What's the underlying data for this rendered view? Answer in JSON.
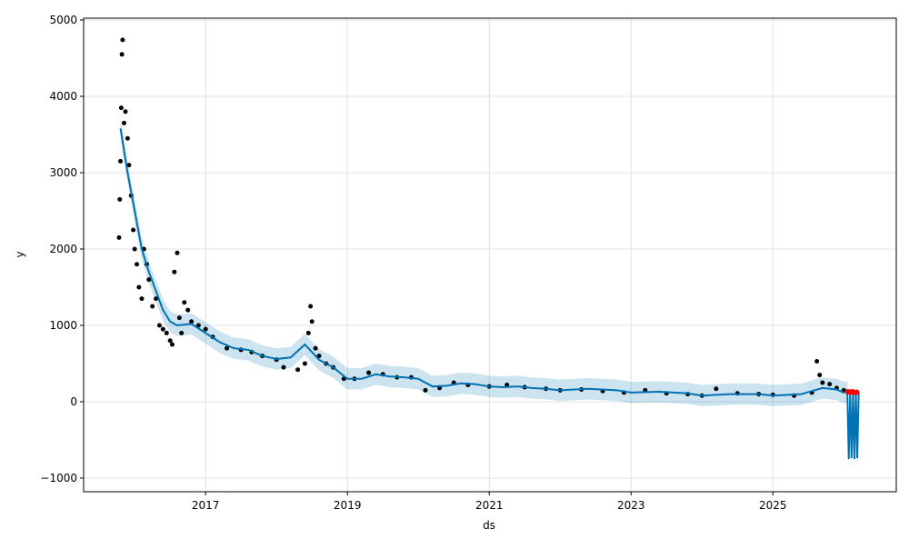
{
  "chart_data": {
    "type": "line",
    "x_label": "ds",
    "y_label": "y",
    "xlim": [
      2015.28,
      2026.74
    ],
    "ylim": [
      -1179,
      5024
    ],
    "xticks": [
      2017,
      2019,
      2021,
      2023,
      2025
    ],
    "yticks": [
      {
        "value": -1000,
        "label": "−1000"
      },
      0,
      1000,
      2000,
      3000,
      4000,
      5000
    ],
    "grid": true,
    "observed": {
      "color": "#000000",
      "x": [
        2015.78,
        2015.79,
        2015.8,
        2015.81,
        2015.82,
        2015.83,
        2015.85,
        2015.87,
        2015.9,
        2015.92,
        2015.95,
        2015.98,
        2016.0,
        2016.03,
        2016.06,
        2016.1,
        2016.13,
        2016.17,
        2016.2,
        2016.25,
        2016.3,
        2016.35,
        2016.4,
        2016.45,
        2016.5,
        2016.53,
        2016.56,
        2016.6,
        2016.63,
        2016.66,
        2016.7,
        2016.75,
        2016.8,
        2016.9,
        2017.0,
        2017.1,
        2017.3,
        2017.5,
        2017.65,
        2017.8,
        2018.0,
        2018.1,
        2018.3,
        2018.4,
        2018.45,
        2018.48,
        2018.5,
        2018.55,
        2018.6,
        2018.7,
        2018.8,
        2018.95,
        2019.1,
        2019.3,
        2019.5,
        2019.7,
        2019.9,
        2020.1,
        2020.3,
        2020.5,
        2020.7,
        2021.0,
        2021.25,
        2021.5,
        2021.8,
        2022.0,
        2022.3,
        2022.6,
        2022.9,
        2023.2,
        2023.5,
        2023.8,
        2024.0,
        2024.2,
        2024.5,
        2024.8,
        2025.0,
        2025.3,
        2025.55,
        2025.62,
        2025.66,
        2025.7,
        2025.8,
        2025.9,
        2026.0
      ],
      "y": [
        2150,
        2650,
        3150,
        3850,
        4550,
        4740,
        3650,
        3800,
        3450,
        3100,
        2700,
        2250,
        2000,
        1800,
        1500,
        1350,
        2000,
        1800,
        1600,
        1250,
        1350,
        1000,
        950,
        900,
        800,
        750,
        1700,
        1950,
        1100,
        900,
        1300,
        1200,
        1050,
        1000,
        950,
        850,
        700,
        680,
        650,
        600,
        550,
        450,
        420,
        500,
        900,
        1250,
        1050,
        700,
        600,
        500,
        450,
        300,
        300,
        380,
        360,
        320,
        320,
        150,
        180,
        250,
        220,
        200,
        220,
        190,
        170,
        150,
        160,
        140,
        120,
        150,
        110,
        100,
        80,
        170,
        110,
        100,
        90,
        80,
        120,
        530,
        350,
        250,
        230,
        180,
        150
      ]
    },
    "forecast": {
      "color": "#0072b2",
      "band_color": "#0072b2",
      "x": [
        2015.8,
        2015.9,
        2016.0,
        2016.1,
        2016.2,
        2016.3,
        2016.4,
        2016.5,
        2016.6,
        2016.8,
        2017.0,
        2017.2,
        2017.4,
        2017.6,
        2017.8,
        2018.0,
        2018.2,
        2018.4,
        2018.6,
        2018.8,
        2019.0,
        2019.2,
        2019.4,
        2019.6,
        2019.8,
        2020.0,
        2020.2,
        2020.4,
        2020.6,
        2020.8,
        2021.0,
        2021.2,
        2021.4,
        2021.6,
        2021.8,
        2022.0,
        2022.4,
        2022.8,
        2023.0,
        2023.4,
        2023.8,
        2024.0,
        2024.4,
        2024.8,
        2025.0,
        2025.4,
        2025.7,
        2025.9,
        2026.0,
        2026.05,
        2026.07,
        2026.09,
        2026.11,
        2026.13,
        2026.15,
        2026.17,
        2026.19,
        2026.21
      ],
      "y": [
        3580,
        3000,
        2500,
        2000,
        1700,
        1450,
        1200,
        1050,
        1000,
        1020,
        900,
        780,
        700,
        680,
        600,
        560,
        580,
        750,
        550,
        450,
        300,
        300,
        360,
        330,
        320,
        300,
        200,
        210,
        240,
        230,
        200,
        190,
        200,
        180,
        170,
        150,
        170,
        150,
        120,
        130,
        110,
        80,
        100,
        100,
        80,
        100,
        180,
        160,
        120,
        130,
        -750,
        130,
        -740,
        130,
        -750,
        130,
        -740,
        130
      ],
      "lower": [
        3440,
        2860,
        2360,
        1860,
        1560,
        1310,
        1060,
        910,
        860,
        880,
        760,
        640,
        560,
        540,
        460,
        420,
        440,
        610,
        410,
        310,
        160,
        160,
        220,
        190,
        180,
        160,
        60,
        70,
        100,
        90,
        60,
        50,
        60,
        40,
        30,
        10,
        30,
        10,
        -20,
        -10,
        -30,
        -60,
        -40,
        -40,
        -60,
        -40,
        40,
        20,
        -20,
        -10,
        -880,
        -10,
        -870,
        -10,
        -880,
        -10,
        -870,
        -10
      ],
      "upper": [
        3720,
        3140,
        2640,
        2140,
        1840,
        1590,
        1340,
        1190,
        1140,
        1160,
        1040,
        920,
        840,
        820,
        740,
        700,
        720,
        890,
        690,
        590,
        440,
        440,
        500,
        470,
        460,
        440,
        340,
        350,
        380,
        370,
        340,
        330,
        340,
        320,
        310,
        290,
        310,
        290,
        260,
        270,
        250,
        220,
        240,
        240,
        220,
        240,
        320,
        300,
        260,
        270,
        -610,
        270,
        -600,
        270,
        -610,
        270,
        -600,
        270
      ]
    },
    "future": {
      "color": "#ff0000",
      "x": [
        2026.06,
        2026.09,
        2026.12,
        2026.15,
        2026.18
      ],
      "y": [
        130,
        125,
        130,
        120,
        125
      ]
    }
  }
}
